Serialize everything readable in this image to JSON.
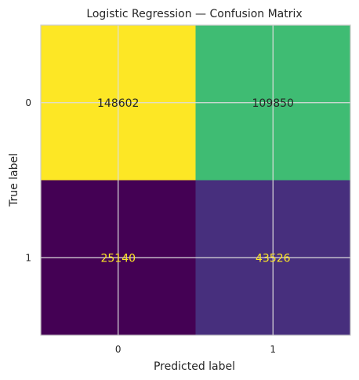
{
  "chart_data": {
    "type": "heatmap",
    "title": "Logistic Regression — Confusion Matrix",
    "xlabel": "Predicted label",
    "ylabel": "True label",
    "x_categories": [
      "0",
      "1"
    ],
    "y_categories": [
      "0",
      "1"
    ],
    "values": [
      [
        148602,
        109850
      ],
      [
        25140,
        43526
      ]
    ],
    "value_range": [
      25140,
      148602
    ],
    "colormap": "viridis",
    "cell_colors": [
      [
        "#fde725",
        "#3fbc73"
      ],
      [
        "#440154",
        "#472f7d"
      ]
    ],
    "value_text_colors": [
      [
        "#262626",
        "#262626"
      ],
      [
        "#fde725",
        "#fde725"
      ]
    ],
    "grid": true,
    "grid_color": "#dddddd",
    "frame_color": "#cccccc",
    "text_color": "#262626"
  }
}
